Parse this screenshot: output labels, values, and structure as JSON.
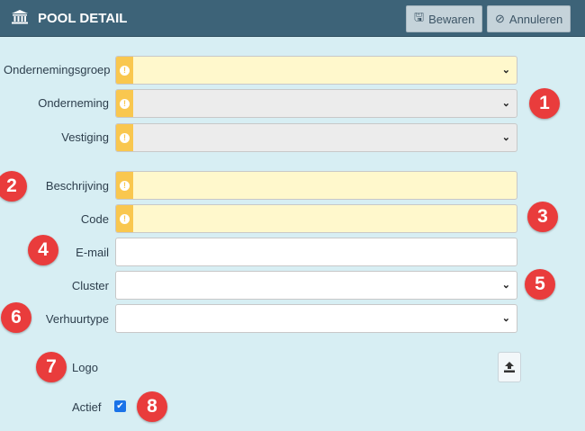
{
  "header": {
    "title": "POOL DETAIL",
    "icon": "bank-icon",
    "save_label": "Bewaren",
    "cancel_label": "Annuleren"
  },
  "fields": [
    {
      "label": "Ondernemingsgroep",
      "type": "select",
      "state": "required",
      "value": ""
    },
    {
      "label": "Onderneming",
      "type": "select",
      "state": "required-disabled",
      "value": ""
    },
    {
      "label": "Vestiging",
      "type": "select",
      "state": "required-disabled",
      "value": ""
    },
    {
      "label": "Beschrijving",
      "type": "text",
      "state": "required",
      "value": ""
    },
    {
      "label": "Code",
      "type": "text",
      "state": "required",
      "value": ""
    },
    {
      "label": "E-mail",
      "type": "text",
      "state": "normal",
      "value": ""
    },
    {
      "label": "Cluster",
      "type": "select",
      "state": "normal",
      "value": ""
    },
    {
      "label": "Verhuurtype",
      "type": "select",
      "state": "normal",
      "value": ""
    }
  ],
  "logo": {
    "label": "Logo"
  },
  "actief": {
    "label": "Actief",
    "checked": true
  },
  "badges": [
    "1",
    "2",
    "3",
    "4",
    "5",
    "6",
    "7",
    "8"
  ],
  "colors": {
    "header": "#3d6378",
    "background": "#d7eef3",
    "required": "#fff8cc",
    "warning": "#f9c74f",
    "badge": "#e93c3c",
    "checkbox": "#1a73e8"
  }
}
